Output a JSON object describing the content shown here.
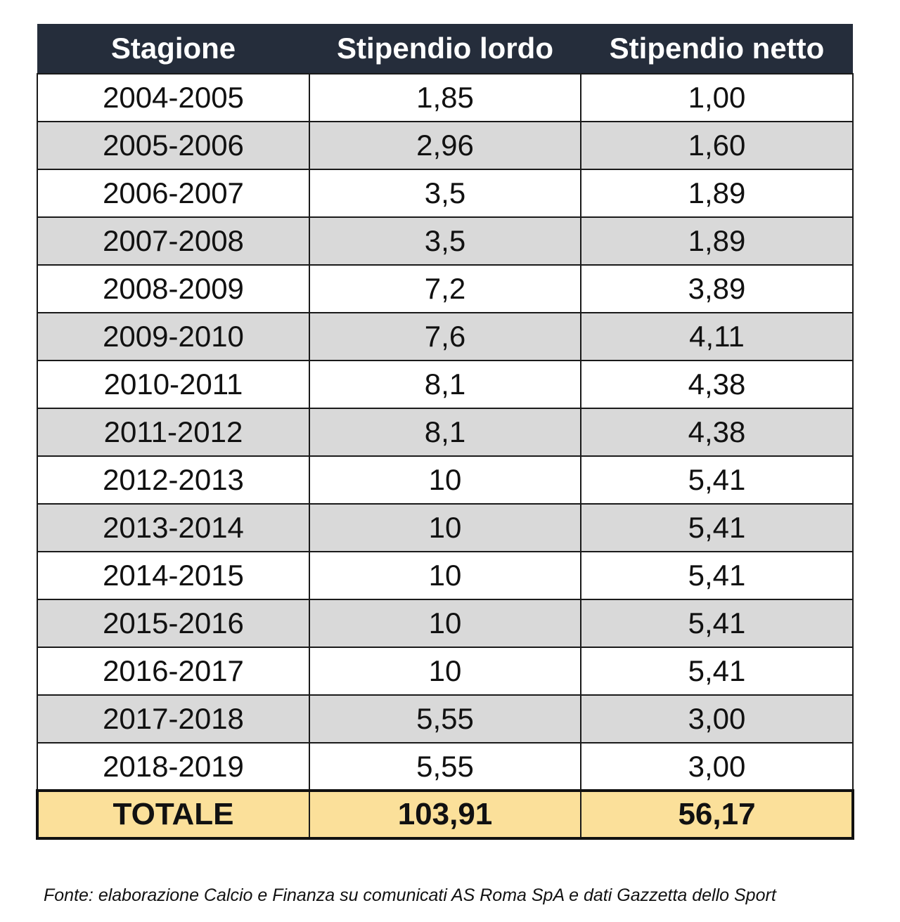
{
  "table": {
    "headers": [
      "Stagione",
      "Stipendio lordo",
      "Stipendio netto"
    ],
    "rows": [
      [
        "2004-2005",
        "1,85",
        "1,00"
      ],
      [
        "2005-2006",
        "2,96",
        "1,60"
      ],
      [
        "2006-2007",
        "3,5",
        "1,89"
      ],
      [
        "2007-2008",
        "3,5",
        "1,89"
      ],
      [
        "2008-2009",
        "7,2",
        "3,89"
      ],
      [
        "2009-2010",
        "7,6",
        "4,11"
      ],
      [
        "2010-2011",
        "8,1",
        "4,38"
      ],
      [
        "2011-2012",
        "8,1",
        "4,38"
      ],
      [
        "2012-2013",
        "10",
        "5,41"
      ],
      [
        "2013-2014",
        "10",
        "5,41"
      ],
      [
        "2014-2015",
        "10",
        "5,41"
      ],
      [
        "2015-2016",
        "10",
        "5,41"
      ],
      [
        "2016-2017",
        "10",
        "5,41"
      ],
      [
        "2017-2018",
        "5,55",
        "3,00"
      ],
      [
        "2018-2019",
        "5,55",
        "3,00"
      ]
    ],
    "total": [
      "TOTALE",
      "103,91",
      "56,17"
    ]
  },
  "source_note": "Fonte: elaborazione Calcio e Finanza su comunicati AS Roma SpA e dati Gazzetta dello Sport",
  "colors": {
    "header_bg": "#252d3b",
    "header_text": "#ffffff",
    "alt_row_bg": "#d9d9d9",
    "total_bg": "#fbe09a"
  }
}
